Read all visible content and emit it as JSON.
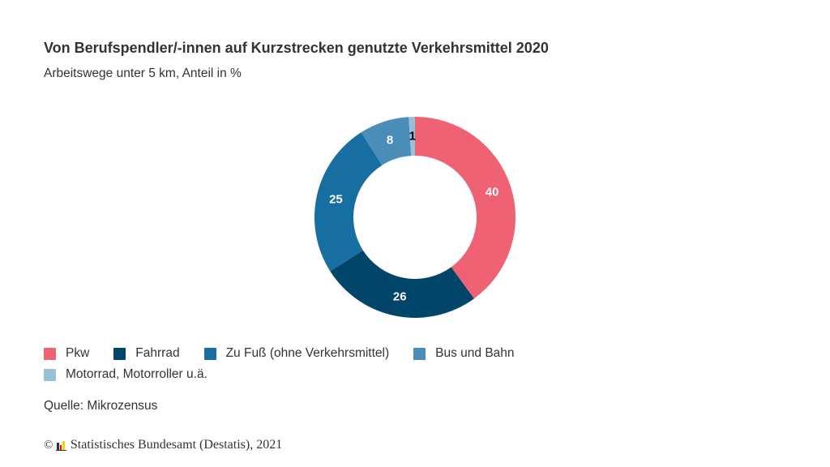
{
  "chart_data": {
    "type": "pie",
    "variant": "donut",
    "title": "Von Berufspendler/-innen auf Kurzstrecken genutzte Verkehrsmittel 2020",
    "subtitle": "Arbeitswege unter 5 km, Anteil in %",
    "categories": [
      "Pkw",
      "Fahrrad",
      "Zu Fuß (ohne Verkehrsmittel)",
      "Bus und Bahn",
      "Motorrad, Motorroller u.ä."
    ],
    "values": [
      40,
      26,
      25,
      8,
      1
    ],
    "data_labels": [
      "40",
      "26",
      "25",
      "8",
      "1"
    ],
    "colors": [
      "#ee6274",
      "#02456a",
      "#176fa1",
      "#4a8db8",
      "#98c1d9"
    ],
    "label_colors": [
      "#ffffff",
      "#ffffff",
      "#ffffff",
      "#ffffff",
      "#000000"
    ],
    "unit": "%",
    "legend_position": "bottom-left",
    "start": "top",
    "direction": "clockwise"
  },
  "legend": {
    "items": [
      {
        "label": "Pkw",
        "color": "#ee6274"
      },
      {
        "label": "Fahrrad",
        "color": "#02456a"
      },
      {
        "label": "Zu Fuß (ohne Verkehrsmittel)",
        "color": "#176fa1"
      },
      {
        "label": "Bus und Bahn",
        "color": "#4a8db8"
      },
      {
        "label": "Motorrad, Motorroller u.ä.",
        "color": "#98c1d9"
      }
    ]
  },
  "source": "Quelle: Mikrozensus",
  "copyright": {
    "symbol": "©",
    "text": "Statistisches Bundesamt (Destatis), 2021",
    "logo_colors": [
      "#333333",
      "#e3000f",
      "#ffcc00"
    ]
  }
}
